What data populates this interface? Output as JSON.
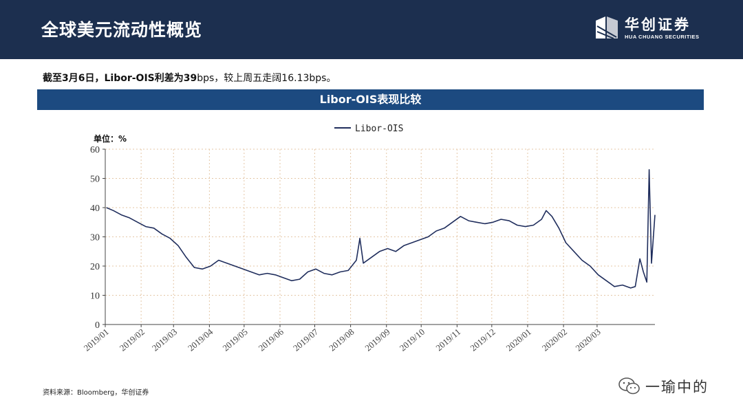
{
  "header": {
    "title": "全球美元流动性概览"
  },
  "logo": {
    "name_cn": "华创证券",
    "name_en": "HUA CHUANG SECURITIES",
    "icon": "hua-chuang-logo-icon"
  },
  "summary": {
    "bold": "截至3月6日，Libor-OIS利差为39",
    "normal": "bps，较上周五走阔16.13bps。"
  },
  "banner": {
    "title": "Libor-OIS表现比较"
  },
  "chart_data": {
    "type": "line",
    "title": "",
    "ylabel": "单位：%",
    "xlabel": "",
    "ylim": [
      0,
      60
    ],
    "yticks": [
      0,
      10,
      20,
      30,
      40,
      50,
      60
    ],
    "grid": true,
    "legend": "top-center",
    "series": [
      {
        "name": "Libor-OIS",
        "color": "#1f2d5c",
        "points": [
          [
            "2019-01-02",
            40.0
          ],
          [
            "2019-01-08",
            39.0
          ],
          [
            "2019-01-15",
            37.5
          ],
          [
            "2019-01-22",
            36.5
          ],
          [
            "2019-01-29",
            35.0
          ],
          [
            "2019-02-05",
            33.5
          ],
          [
            "2019-02-12",
            33.0
          ],
          [
            "2019-02-19",
            31.0
          ],
          [
            "2019-02-26",
            29.5
          ],
          [
            "2019-03-05",
            27.0
          ],
          [
            "2019-03-12",
            23.0
          ],
          [
            "2019-03-19",
            19.5
          ],
          [
            "2019-03-26",
            19.0
          ],
          [
            "2019-04-02",
            20.0
          ],
          [
            "2019-04-09",
            22.0
          ],
          [
            "2019-04-16",
            21.0
          ],
          [
            "2019-04-23",
            20.0
          ],
          [
            "2019-04-30",
            19.0
          ],
          [
            "2019-05-07",
            18.0
          ],
          [
            "2019-05-14",
            17.0
          ],
          [
            "2019-05-21",
            17.5
          ],
          [
            "2019-05-28",
            17.0
          ],
          [
            "2019-06-04",
            16.0
          ],
          [
            "2019-06-11",
            15.0
          ],
          [
            "2019-06-18",
            15.5
          ],
          [
            "2019-06-25",
            18.0
          ],
          [
            "2019-07-02",
            19.0
          ],
          [
            "2019-07-09",
            17.5
          ],
          [
            "2019-07-16",
            17.0
          ],
          [
            "2019-07-23",
            18.0
          ],
          [
            "2019-07-30",
            18.5
          ],
          [
            "2019-08-06",
            22.0
          ],
          [
            "2019-08-09",
            29.5
          ],
          [
            "2019-08-12",
            21.0
          ],
          [
            "2019-08-19",
            23.0
          ],
          [
            "2019-08-26",
            25.0
          ],
          [
            "2019-09-02",
            26.0
          ],
          [
            "2019-09-09",
            25.0
          ],
          [
            "2019-09-16",
            27.0
          ],
          [
            "2019-09-23",
            28.0
          ],
          [
            "2019-09-30",
            29.0
          ],
          [
            "2019-10-07",
            30.0
          ],
          [
            "2019-10-14",
            32.0
          ],
          [
            "2019-10-21",
            33.0
          ],
          [
            "2019-10-28",
            35.0
          ],
          [
            "2019-11-04",
            37.0
          ],
          [
            "2019-11-11",
            35.5
          ],
          [
            "2019-11-18",
            35.0
          ],
          [
            "2019-11-25",
            34.5
          ],
          [
            "2019-12-02",
            35.0
          ],
          [
            "2019-12-09",
            36.0
          ],
          [
            "2019-12-16",
            35.5
          ],
          [
            "2019-12-23",
            34.0
          ],
          [
            "2019-12-30",
            33.5
          ],
          [
            "2020-01-06",
            34.0
          ],
          [
            "2020-01-13",
            36.0
          ],
          [
            "2020-01-17",
            39.0
          ],
          [
            "2020-01-22",
            37.0
          ],
          [
            "2020-01-28",
            33.0
          ],
          [
            "2020-02-03",
            28.0
          ],
          [
            "2020-02-10",
            25.0
          ],
          [
            "2020-02-17",
            22.0
          ],
          [
            "2020-02-24",
            20.0
          ],
          [
            "2020-03-02",
            17.0
          ],
          [
            "2020-03-09",
            15.0
          ],
          [
            "2020-03-16",
            13.0
          ],
          [
            "2020-03-23",
            13.5
          ],
          [
            "2020-03-30",
            12.5
          ],
          [
            "2020-04-03",
            13.0
          ],
          [
            "2020-04-07",
            22.5
          ],
          [
            "2020-04-10",
            18.0
          ],
          [
            "2020-04-13",
            14.5
          ],
          [
            "2020-04-15",
            53.0
          ],
          [
            "2020-04-17",
            21.0
          ],
          [
            "2020-04-20",
            37.5
          ]
        ]
      }
    ],
    "x_ticks": [
      "2019/01",
      "2019/02",
      "2019/03",
      "2019/04",
      "2019/05",
      "2019/06",
      "2019/07",
      "2019/08",
      "2019/09",
      "2019/10",
      "2019/11",
      "2019/12",
      "2020/01",
      "2020/02",
      "2020/03"
    ]
  },
  "source": "资料来源：Bloomberg，华创证券",
  "watermark": {
    "text": "一瑜中的",
    "icon": "wechat-icon"
  }
}
